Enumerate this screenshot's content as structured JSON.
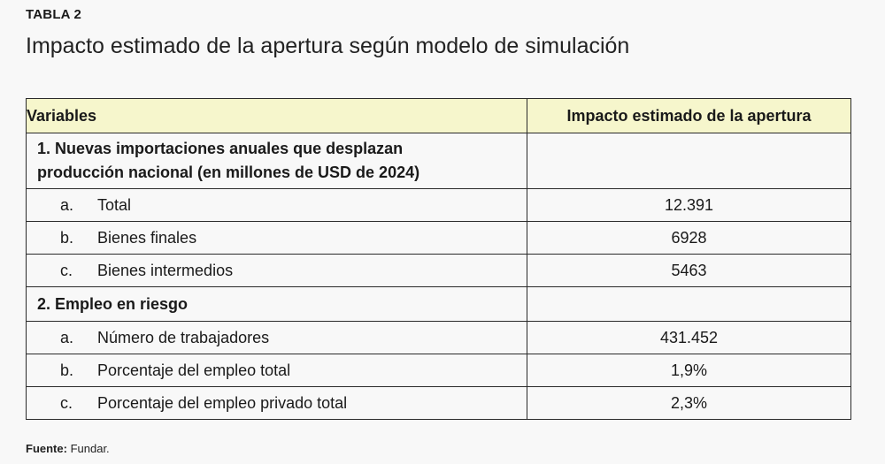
{
  "label": "TABLA 2",
  "title": "Impacto estimado de la apertura según modelo de simulación",
  "table": {
    "headers": [
      "Variables",
      "Impacto estimado de la apertura"
    ],
    "sections": [
      {
        "title_line1": "1. Nuevas importaciones anuales que desplazan",
        "title_line2": "producción nacional (en millones de USD de 2024)",
        "rows": [
          {
            "letter": "a.",
            "label": "Total",
            "value": "12.391"
          },
          {
            "letter": "b.",
            "label": "Bienes finales",
            "value": "6928"
          },
          {
            "letter": "c.",
            "label": "Bienes intermedios",
            "value": "5463"
          }
        ]
      },
      {
        "title_line1": "2. Empleo en riesgo",
        "rows": [
          {
            "letter": "a.",
            "label": "Número de trabajadores",
            "value": "431.452"
          },
          {
            "letter": "b.",
            "label": "Porcentaje del empleo total",
            "value": "1,9%"
          },
          {
            "letter": "c.",
            "label": "Porcentaje del empleo privado total",
            "value": "2,3%"
          }
        ]
      }
    ]
  },
  "source": {
    "label": "Fuente:",
    "text": "Fundar."
  }
}
